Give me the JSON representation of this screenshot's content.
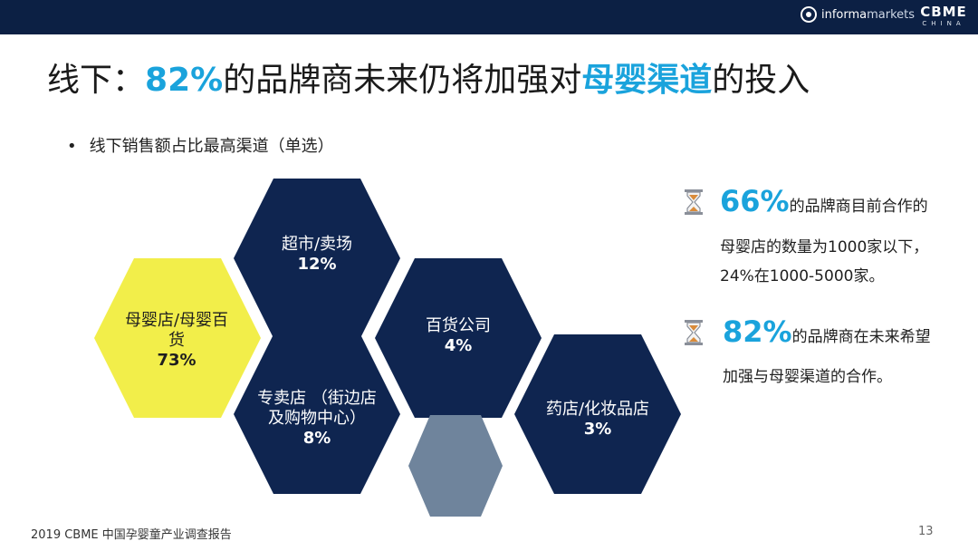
{
  "header": {
    "brand_informa_bold": "informa",
    "brand_informa_light": "markets",
    "brand_cbme": "CBME",
    "brand_cbme_sub": "CHINA"
  },
  "title": {
    "prefix": "线下：",
    "highlight_pct": "82%",
    "middle": "的品牌商未来仍将加强对",
    "highlight_channel": "母婴渠道",
    "suffix": "的投入"
  },
  "subtitle": {
    "bullet": "•",
    "text": "线下销售额占比最高渠道（单选）"
  },
  "hexagons": [
    {
      "label": "超市/卖场",
      "pct": "12%",
      "color": "#0f2550"
    },
    {
      "label": "母婴店/母婴百货",
      "pct": "73%",
      "color": "#f2ee4a"
    },
    {
      "label": "百货公司",
      "pct": "4%",
      "color": "#0f2550"
    },
    {
      "label": "专卖店 （街边店及购物中心）",
      "pct": "8%",
      "color": "#0f2550"
    },
    {
      "label": "药店/化妆品店",
      "pct": "3%",
      "color": "#0f2550"
    },
    {
      "label": "",
      "pct": "",
      "color": "#6f849c"
    }
  ],
  "stats": [
    {
      "value": "66%",
      "line1": "的品牌商目前合作的",
      "line2": "母婴店的数量为1000家以下，",
      "line3": "24%在1000-5000家。",
      "icon": "hourglass-icon"
    },
    {
      "value": "82%",
      "line1": "的品牌商在未来希望",
      "line2": "加强与母婴渠道的合作。",
      "icon": "hourglass-icon"
    }
  ],
  "footer": {
    "report": "2019 CBME 中国孕婴童产业调查报告",
    "page": "13"
  },
  "colors": {
    "navy": "#0c2044",
    "accent": "#1aa3dc",
    "yellow": "#f2ee4a",
    "gray_blue": "#6f849c"
  }
}
